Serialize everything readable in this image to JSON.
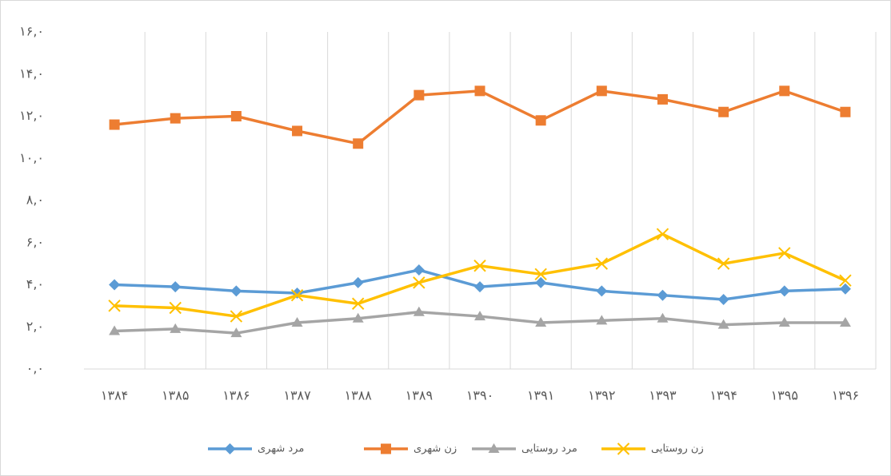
{
  "chart_data": {
    "type": "line",
    "categories": [
      "۱۳۸۴",
      "۱۳۸۵",
      "۱۳۸۶",
      "۱۳۸۷",
      "۱۳۸۸",
      "۱۳۸۹",
      "۱۳۹۰",
      "۱۳۹۱",
      "۱۳۹۲",
      "۱۳۹۳",
      "۱۳۹۴",
      "۱۳۹۵",
      "۱۳۹۶"
    ],
    "series": [
      {
        "name": "مرد شهری",
        "color": "#5b9bd5",
        "marker": "diamond",
        "values": [
          4.0,
          3.9,
          3.7,
          3.6,
          4.1,
          4.7,
          3.9,
          4.1,
          3.7,
          3.5,
          3.3,
          3.7,
          3.8
        ]
      },
      {
        "name": "زن شهری",
        "color": "#ed7d31",
        "marker": "square",
        "values": [
          11.6,
          11.9,
          12.0,
          11.3,
          10.7,
          13.0,
          13.2,
          11.8,
          13.2,
          12.8,
          12.2,
          13.2,
          12.2
        ]
      },
      {
        "name": "مرد روستایی",
        "color": "#a5a5a5",
        "marker": "triangle",
        "values": [
          1.8,
          1.9,
          1.7,
          2.2,
          2.4,
          2.7,
          2.5,
          2.2,
          2.3,
          2.4,
          2.1,
          2.2,
          2.2
        ]
      },
      {
        "name": "زن روستایی",
        "color": "#ffc000",
        "marker": "x",
        "values": [
          3.0,
          2.9,
          2.5,
          3.5,
          3.1,
          4.1,
          4.9,
          4.5,
          5.0,
          6.4,
          5.0,
          5.5,
          4.2
        ]
      }
    ],
    "ylim": [
      0,
      16
    ],
    "yticks": [
      {
        "value": 0,
        "label": "۰,۰"
      },
      {
        "value": 2,
        "label": "۲,۰"
      },
      {
        "value": 4,
        "label": "۴,۰"
      },
      {
        "value": 6,
        "label": "۶,۰"
      },
      {
        "value": 8,
        "label": "۸,۰"
      },
      {
        "value": 10,
        "label": "۱۰,۰"
      },
      {
        "value": 12,
        "label": "۱۲,۰"
      },
      {
        "value": 14,
        "label": "۱۴,۰"
      },
      {
        "value": 16,
        "label": "۱۶,۰"
      }
    ],
    "grid": true,
    "legend": "bottom"
  }
}
